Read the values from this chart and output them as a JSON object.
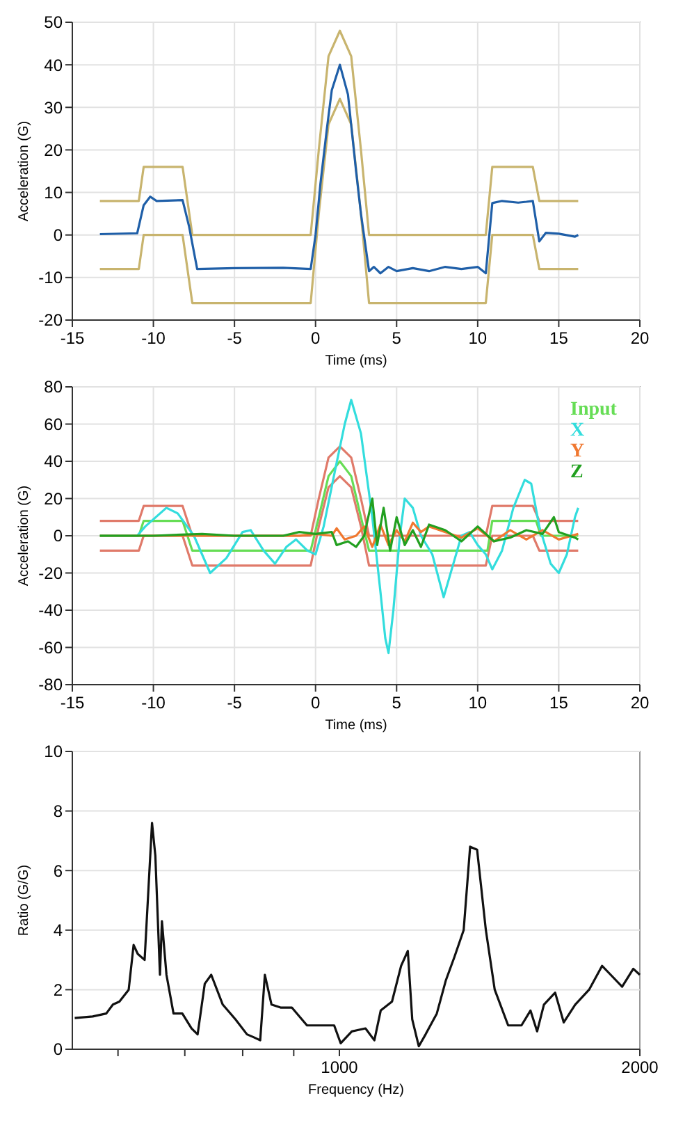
{
  "chart_data": [
    {
      "type": "line",
      "xlabel": "Time (ms)",
      "ylabel": "Acceleration (G)",
      "xlim": [
        -15,
        20
      ],
      "xticks": [
        -15,
        -10,
        -5,
        0,
        5,
        10,
        15,
        20
      ],
      "ylim": [
        -20,
        50
      ],
      "yticks": [
        -20,
        -10,
        0,
        10,
        20,
        30,
        40,
        50
      ],
      "grid": true,
      "series": [
        {
          "color": "#c8b46e",
          "x": [
            -13.3,
            -10.9,
            -10.6,
            -8.2,
            -7.6,
            -0.3,
            0.2,
            0.8,
            1.5,
            2.2,
            2.8,
            3.3,
            10.5,
            10.9,
            13.4,
            13.8,
            16.2
          ],
          "values": [
            8,
            8,
            16,
            16,
            0,
            0,
            20,
            42,
            48,
            42,
            20,
            0,
            0,
            16,
            16,
            8,
            8
          ]
        },
        {
          "color": "#c8b46e",
          "x": [
            -13.3,
            -10.9,
            -10.6,
            -8.2,
            -7.6,
            -0.3,
            0.2,
            0.8,
            1.5,
            2.2,
            2.8,
            3.3,
            10.5,
            10.9,
            13.4,
            13.8,
            16.2
          ],
          "values": [
            -8,
            -8,
            0,
            0,
            -16,
            -16,
            5,
            26,
            32,
            26,
            5,
            -16,
            -16,
            0,
            0,
            -8,
            -8
          ]
        },
        {
          "color": "#1f5fa8",
          "x": [
            -13.3,
            -11,
            -10.6,
            -10.2,
            -9.8,
            -8.2,
            -7.8,
            -7.3,
            -5,
            -2,
            -0.3,
            0,
            0.3,
            0.7,
            1,
            1.5,
            2,
            2.5,
            2.8,
            3.3,
            3.6,
            4,
            4.5,
            5,
            6,
            7,
            8,
            9,
            10,
            10.5,
            10.9,
            11.5,
            12.5,
            13,
            13.4,
            13.8,
            14.2,
            15,
            16,
            16.2
          ],
          "values": [
            0.2,
            0.4,
            7,
            9,
            8,
            8.2,
            2,
            -8,
            -7.8,
            -7.7,
            -8,
            0,
            12,
            25,
            34,
            40,
            33,
            15,
            5,
            -8.5,
            -7.5,
            -9,
            -7.5,
            -8.5,
            -7.8,
            -8.5,
            -7.5,
            -8,
            -7.5,
            -9,
            7.5,
            8,
            7.6,
            7.8,
            8,
            -1.5,
            0.5,
            0.3,
            -0.4,
            0
          ]
        }
      ]
    },
    {
      "type": "line",
      "xlabel": "Time (ms)",
      "ylabel": "Acceleration (G)",
      "xlim": [
        -15,
        20
      ],
      "xticks": [
        -15,
        -10,
        -5,
        0,
        5,
        10,
        15,
        20
      ],
      "ylim": [
        -80,
        80
      ],
      "yticks": [
        -80,
        -60,
        -40,
        -20,
        0,
        20,
        40,
        60,
        80
      ],
      "grid": true,
      "legend": "top right",
      "series": [
        {
          "color": "#e07a6a",
          "x": [
            -13.3,
            -10.9,
            -10.6,
            -8.2,
            -7.6,
            -0.3,
            0.2,
            0.8,
            1.5,
            2.2,
            2.8,
            3.3,
            10.5,
            10.9,
            13.4,
            13.8,
            16.2
          ],
          "values": [
            8,
            8,
            16,
            16,
            0,
            0,
            20,
            42,
            48,
            42,
            20,
            0,
            0,
            16,
            16,
            8,
            8
          ]
        },
        {
          "color": "#e07a6a",
          "x": [
            -13.3,
            -10.9,
            -10.6,
            -8.2,
            -7.6,
            -0.3,
            0.2,
            0.8,
            1.5,
            2.2,
            2.8,
            3.3,
            10.5,
            10.9,
            13.4,
            13.8,
            16.2
          ],
          "values": [
            -8,
            -8,
            0,
            0,
            -16,
            -16,
            5,
            26,
            32,
            26,
            5,
            -16,
            -16,
            0,
            0,
            -8,
            -8
          ]
        },
        {
          "name": "Input",
          "color": "#66dd55",
          "x": [
            -13.3,
            -10.9,
            -10.6,
            -8.2,
            -7.6,
            -0.3,
            0.2,
            0.8,
            1.5,
            2.2,
            2.8,
            3.3,
            10.6,
            10.9,
            13.6,
            13.9,
            16.2
          ],
          "values": [
            0,
            0,
            8,
            8,
            -8,
            -8,
            10,
            32,
            40,
            32,
            10,
            -8,
            -8,
            8,
            8,
            0,
            0
          ]
        },
        {
          "name": "X",
          "color": "#33dddd",
          "x": [
            -13.3,
            -11,
            -10.5,
            -9.2,
            -8.5,
            -7.5,
            -6.5,
            -5.5,
            -4.5,
            -4,
            -3.2,
            -2.5,
            -1.8,
            -1.2,
            -0.5,
            0,
            0.5,
            1.2,
            1.8,
            2.2,
            2.8,
            3.5,
            4,
            4.3,
            4.5,
            4.8,
            5.2,
            5.5,
            6,
            6.5,
            7.2,
            7.9,
            8.5,
            9,
            9.5,
            10,
            10.5,
            10.9,
            11.5,
            12.2,
            12.9,
            13.3,
            13.8,
            14.5,
            15,
            15.5,
            16,
            16.2
          ],
          "values": [
            0,
            0,
            5,
            15,
            12,
            0,
            -20,
            -12,
            2,
            3,
            -8,
            -15,
            -6,
            -2,
            -8,
            -10,
            5,
            35,
            60,
            73,
            55,
            10,
            -30,
            -55,
            -63,
            -40,
            0,
            20,
            15,
            0,
            -10,
            -33,
            -15,
            0,
            2,
            -5,
            -10,
            -18,
            -8,
            15,
            30,
            28,
            5,
            -15,
            -20,
            -10,
            10,
            15
          ]
        },
        {
          "name": "Y",
          "color": "#f07830",
          "x": [
            -13.3,
            -10,
            -5,
            -1,
            0,
            1,
            1.3,
            1.8,
            2.5,
            3,
            3.5,
            4,
            4.5,
            5,
            5.5,
            6,
            6.5,
            7,
            8,
            9,
            10,
            11,
            12,
            13,
            14,
            15,
            16.2
          ],
          "values": [
            0,
            0,
            0,
            0,
            1,
            0,
            4,
            -2,
            0,
            5,
            -6,
            6,
            -5,
            3,
            -3,
            7,
            2,
            5,
            2,
            -1,
            4,
            -3,
            3,
            -2,
            3,
            -2,
            1
          ]
        },
        {
          "name": "Z",
          "color": "#22a020",
          "x": [
            -13.3,
            -10,
            -7,
            -5,
            -2,
            -1,
            0,
            1,
            1.3,
            2,
            2.5,
            3,
            3.5,
            3.8,
            4.2,
            4.6,
            5,
            5.5,
            6,
            6.5,
            7,
            8,
            9,
            10,
            11,
            12,
            13,
            14,
            14.7,
            15,
            16,
            16.2
          ],
          "values": [
            0,
            0,
            1,
            0,
            0,
            2,
            1,
            2,
            -5,
            -3,
            -6,
            0,
            20,
            -5,
            15,
            -8,
            10,
            -5,
            3,
            -6,
            6,
            3,
            -3,
            5,
            -3,
            -1,
            3,
            1,
            10,
            2,
            -1,
            -2
          ]
        }
      ]
    },
    {
      "type": "line",
      "xlabel": "Frequency (Hz)",
      "ylabel": "Ratio (G/G)",
      "log": "x",
      "xlim": [
        540,
        2000
      ],
      "xticks": [
        {
          "value": 600,
          "label": null
        },
        {
          "value": 700,
          "label": null
        },
        {
          "value": 800,
          "label": null
        },
        {
          "value": 900,
          "label": null
        },
        1000,
        2000
      ],
      "ylim": [
        0,
        10
      ],
      "yticks": [
        0,
        2,
        4,
        6,
        8,
        10
      ],
      "grid": "y",
      "series": [
        {
          "color": "#111111",
          "x": [
            543,
            566,
            584,
            593,
            602,
            615,
            622,
            628,
            638,
            649,
            654,
            661,
            664,
            671,
            682,
            696,
            711,
            721,
            733,
            744,
            764,
            787,
            808,
            821,
            833,
            842,
            855,
            873,
            896,
            928,
            967,
            988,
            1003,
            1029,
            1062,
            1084,
            1100,
            1129,
            1153,
            1171,
            1183,
            1201,
            1220,
            1252,
            1278,
            1304,
            1332,
            1352,
            1374,
            1402,
            1431,
            1476,
            1522,
            1554,
            1578,
            1603,
            1645,
            1678,
            1723,
            1779,
            1833,
            1870,
            1920,
            1970,
            2000
          ],
          "values": [
            1.05,
            1.1,
            1.2,
            1.5,
            1.6,
            2,
            3.5,
            3.2,
            3,
            7.6,
            6.5,
            2.5,
            4.3,
            2.5,
            1.2,
            1.2,
            0.7,
            0.5,
            2.2,
            2.5,
            1.5,
            1,
            0.5,
            0.4,
            0.3,
            2.5,
            1.5,
            1.4,
            1.4,
            0.8,
            0.8,
            0.8,
            0.2,
            0.6,
            0.7,
            0.3,
            1.3,
            1.6,
            2.8,
            3.3,
            1,
            0.1,
            0.5,
            1.2,
            2.3,
            3.1,
            4,
            6.8,
            6.7,
            4,
            2,
            0.8,
            0.8,
            1.3,
            0.6,
            1.5,
            1.9,
            0.9,
            1.5,
            2,
            2.8,
            2.5,
            2.1,
            2.7,
            2.5
          ]
        }
      ]
    }
  ]
}
